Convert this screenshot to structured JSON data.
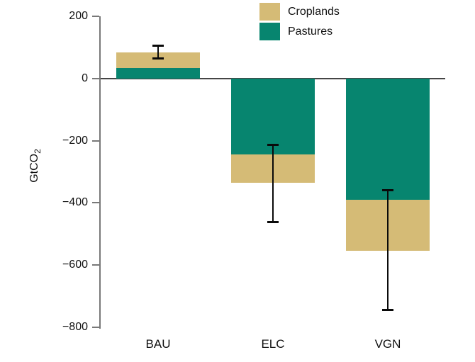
{
  "chart_data": {
    "type": "bar",
    "stacked": true,
    "title": "",
    "ylabel": {
      "text": "GtCO",
      "sub": "2"
    },
    "xlabel": "",
    "categories": [
      "BAU",
      "ELC",
      "VGN"
    ],
    "series": [
      {
        "name": "Croplands",
        "color": "#D5BB76",
        "values": [
          51,
          -90,
          -164
        ]
      },
      {
        "name": "Pastures",
        "color": "#07856F",
        "values": [
          33,
          -245,
          -390
        ]
      }
    ],
    "stack_order_from_zero": [
      "Pastures",
      "Croplands"
    ],
    "totals": [
      84,
      -335,
      -554
    ],
    "error_bars": [
      {
        "low": 64,
        "high": 107
      },
      {
        "low": -462,
        "high": -213
      },
      {
        "low": -746,
        "high": -358
      }
    ],
    "y_axis": {
      "min": -800,
      "max": 200,
      "ticks": [
        {
          "value": 200,
          "label": "200"
        },
        {
          "value": 0,
          "label": "0"
        },
        {
          "value": -200,
          "label": "−200"
        },
        {
          "value": -400,
          "label": "−400"
        },
        {
          "value": -600,
          "label": "−600"
        },
        {
          "value": -800,
          "label": "−800"
        }
      ]
    },
    "legend": {
      "position": "top-center",
      "entries": [
        "Croplands",
        "Pastures"
      ]
    },
    "grid": false,
    "error_bar_color": "#0a0a0a",
    "axis_color": "#787878",
    "zero_line_color": "#454545"
  }
}
